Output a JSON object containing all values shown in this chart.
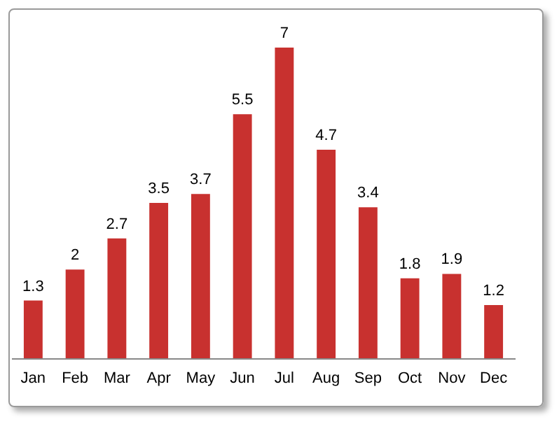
{
  "chart_data": {
    "type": "bar",
    "categories": [
      "Jan",
      "Feb",
      "Mar",
      "Apr",
      "May",
      "Jun",
      "Jul",
      "Aug",
      "Sep",
      "Oct",
      "Nov",
      "Dec"
    ],
    "values": [
      1.3,
      2,
      2.7,
      3.5,
      3.7,
      5.5,
      7,
      4.7,
      3.4,
      1.8,
      1.9,
      1.2
    ],
    "color": "#c8312f",
    "data_labels": true
  }
}
